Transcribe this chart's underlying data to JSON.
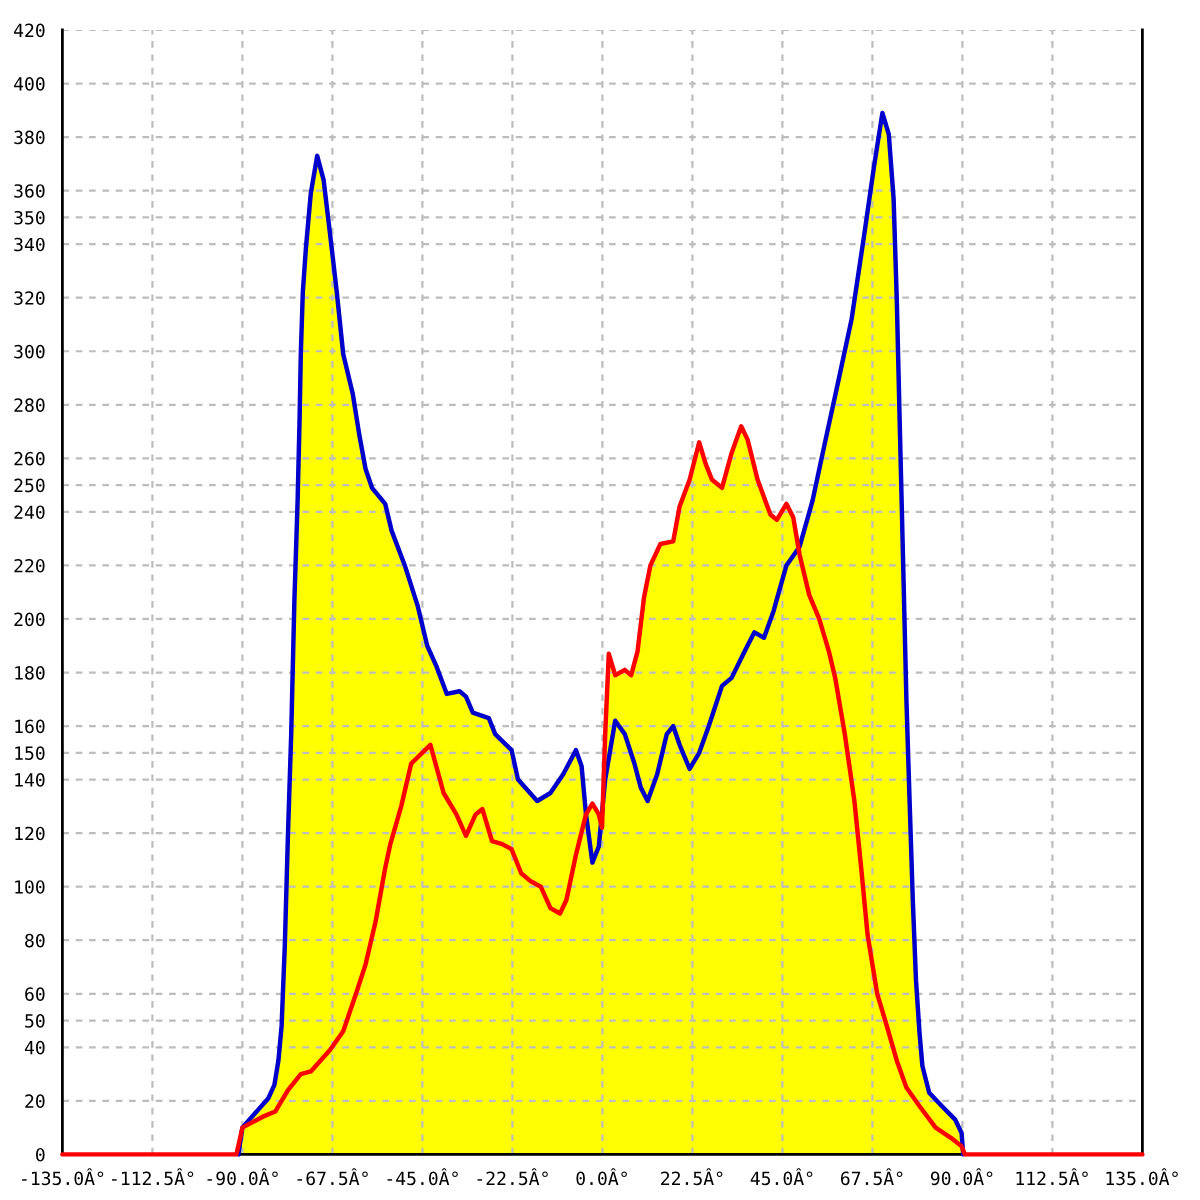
{
  "chart_data": {
    "type": "line",
    "xlim": [
      -135,
      135
    ],
    "ylim": [
      0,
      420
    ],
    "xticks": [
      {
        "value": -135,
        "label": "-135.0Â°"
      },
      {
        "value": -112.5,
        "label": "-112.5Â°"
      },
      {
        "value": -90,
        "label": "-90.0Â°"
      },
      {
        "value": -67.5,
        "label": "-67.5Â°"
      },
      {
        "value": -45,
        "label": "-45.0Â°"
      },
      {
        "value": -22.5,
        "label": "-22.5Â°"
      },
      {
        "value": 0,
        "label": "0.0Â°"
      },
      {
        "value": 22.5,
        "label": "22.5Â°"
      },
      {
        "value": 45,
        "label": "45.0Â°"
      },
      {
        "value": 67.5,
        "label": "67.5Â°"
      },
      {
        "value": 90,
        "label": "90.0Â°"
      },
      {
        "value": 112.5,
        "label": "112.5Â°"
      },
      {
        "value": 135,
        "label": "135.0Â°"
      }
    ],
    "yticks": [
      0,
      20,
      40,
      50,
      60,
      80,
      100,
      120,
      140,
      150,
      160,
      180,
      200,
      220,
      240,
      250,
      260,
      280,
      300,
      320,
      340,
      350,
      360,
      380,
      400,
      420
    ],
    "grid": true,
    "series": [
      {
        "type": "area",
        "color": "#ffff00",
        "x": [
          -91,
          -90,
          -83.5,
          -82,
          -81,
          -80.2,
          -79.4,
          -78.6,
          -77.8,
          -77,
          -76.2,
          -75.7,
          -75.4,
          -74.9,
          -74.1,
          -72.9,
          -71.3,
          -69.7,
          -68.1,
          -66.4,
          -64.8,
          -62.4,
          -60.8,
          -59.2,
          -57.6,
          -54.3,
          -52.7,
          -49.4,
          -46.2,
          -43.8,
          -41.4,
          -38.9,
          -35.7,
          -34.1,
          -32.4,
          -28.4,
          -26.8,
          -22.7,
          -21.1,
          -18.7,
          -16.3,
          -13,
          -9.8,
          -6.6,
          -5.2,
          -4.1,
          -2.5,
          -0.9,
          0.7,
          3.2,
          5.6,
          8,
          9.6,
          11.3,
          13.7,
          16.1,
          17.7,
          19.3,
          21.8,
          24.2,
          26.6,
          29.9,
          32.3,
          35.6,
          38,
          40.4,
          42.8,
          46,
          49.3,
          52.5,
          55.8,
          59,
          62.3,
          65.5,
          67.9,
          70,
          71.6,
          72.8,
          73.6,
          74.4,
          75.2,
          76,
          76.8,
          77.6,
          78.4,
          79.3,
          80,
          81.7,
          84.9,
          88.2,
          89.8,
          90.2
        ],
        "values": [
          0,
          10,
          21,
          26,
          35,
          48,
          78,
          120,
          157,
          207,
          244,
          275,
          299,
          322,
          339,
          359,
          373,
          364,
          344,
          322,
          299,
          284,
          269,
          256,
          249,
          243,
          233,
          220,
          205,
          190,
          182,
          172,
          173,
          171,
          165,
          163,
          157,
          151,
          140,
          136,
          132,
          135,
          142,
          151,
          145,
          127,
          null,
          null,
          null,
          null,
          null,
          null,
          null,
          null,
          null,
          null,
          null,
          null,
          null,
          null,
          null,
          null,
          null,
          null,
          null,
          null,
          null,
          null,
          227,
          244,
          267,
          289,
          312,
          344,
          369,
          389,
          381,
          357,
          319,
          269,
          220,
          170,
          132,
          95,
          65,
          45,
          33,
          23,
          18,
          13,
          8,
          0
        ]
      },
      {
        "type": "area",
        "color": "#fffe00",
        "x": [
          -91.5,
          -90,
          -85,
          -81.8,
          -78.6,
          -75.4,
          -72.9,
          -70.5,
          -68.1,
          -64.8,
          -61.6,
          -59.2,
          -56.7,
          -54.3,
          -53,
          -50.3,
          -47.8,
          -43,
          -39.7,
          -36.5,
          -34.1,
          -31.7,
          -30,
          -27.6,
          -25.2,
          -22.7,
          -20.3,
          -17.9,
          -15.4,
          -13,
          -10.6,
          -9,
          -6.6,
          -4.1,
          -2.5,
          -0.9,
          -0.1,
          0.7,
          1.6,
          3.2,
          5.6,
          7.2,
          8.8,
          10.4,
          12,
          14.5,
          17.7,
          19.3,
          21.8,
          24.2,
          25.8,
          27.4,
          29.9,
          32.3,
          34.7,
          36.3,
          38.8,
          42,
          43.6,
          46,
          47.7,
          49.3,
          51.7,
          54.2,
          56.6,
          58.2,
          60.6,
          63,
          64.7,
          66.3,
          68.7,
          71.1,
          73.6,
          76,
          79.3,
          83.3,
          87.3,
          89.8,
          90.6
        ],
        "values": [
          0,
          10,
          14,
          16,
          24,
          30,
          31,
          35,
          39,
          46,
          60,
          71,
          87,
          107,
          116,
          130,
          146,
          153,
          135,
          127,
          119,
          127,
          129,
          117,
          116,
          114,
          105,
          102,
          100,
          92,
          90,
          95,
          112,
          127,
          131,
          127,
          122,
          157,
          187,
          179,
          181,
          179,
          188,
          208,
          220,
          228,
          229,
          242,
          252,
          266,
          258,
          252,
          249,
          262,
          272,
          267,
          252,
          239,
          237,
          243,
          238,
          224,
          209,
          200,
          188,
          178,
          157,
          132,
          107,
          82,
          60,
          48,
          35,
          25,
          18,
          10,
          6,
          3,
          0
        ]
      },
      {
        "color": "#0000cc",
        "x": [
          -91,
          -90,
          -83.5,
          -82,
          -81,
          -80.2,
          -79.4,
          -78.6,
          -77.8,
          -77,
          -76.2,
          -75.7,
          -75.4,
          -74.9,
          -74.1,
          -72.9,
          -71.3,
          -69.7,
          -68.1,
          -66.4,
          -64.8,
          -62.4,
          -60.8,
          -59.2,
          -57.6,
          -54.3,
          -52.7,
          -49.4,
          -46.2,
          -43.8,
          -41.4,
          -38.9,
          -35.7,
          -34.1,
          -32.4,
          -28.4,
          -26.8,
          -22.7,
          -21.1,
          -18.7,
          -16.3,
          -13,
          -9.8,
          -6.6,
          -5.2,
          -4.1,
          -2.5,
          -0.9,
          0.7,
          3.2,
          5.6,
          8,
          9.6,
          11.3,
          13.7,
          16.1,
          17.7,
          19.3,
          21.8,
          24.2,
          26.6,
          29.9,
          32.3,
          35.6,
          38,
          40.4,
          42.8,
          46,
          49.3,
          52.5,
          55.8,
          59,
          62.3,
          65.5,
          67.9,
          70,
          71.6,
          72.8,
          73.6,
          74.4,
          75.2,
          76,
          76.8,
          77.6,
          78.4,
          79.3,
          80,
          81.7,
          84.9,
          88.2,
          89.8,
          90.2
        ],
        "values": [
          0,
          10,
          21,
          26,
          35,
          48,
          78,
          120,
          157,
          207,
          244,
          275,
          299,
          322,
          339,
          359,
          373,
          364,
          344,
          322,
          299,
          284,
          269,
          256,
          249,
          243,
          233,
          220,
          205,
          190,
          182,
          172,
          173,
          171,
          165,
          163,
          157,
          151,
          140,
          136,
          132,
          135,
          142,
          151,
          145,
          127,
          109,
          115,
          140,
          162,
          157,
          146,
          137,
          132,
          142,
          157,
          160,
          153,
          144,
          150,
          160,
          175,
          178,
          188,
          195,
          193,
          203,
          220,
          227,
          244,
          267,
          289,
          312,
          344,
          369,
          389,
          381,
          357,
          319,
          269,
          220,
          170,
          132,
          95,
          65,
          45,
          33,
          23,
          18,
          13,
          8,
          0
        ]
      },
      {
        "color": "#ff0000",
        "x": [
          -135,
          -91.5,
          -90,
          -85,
          -81.8,
          -78.6,
          -75.4,
          -72.9,
          -70.5,
          -68.1,
          -64.8,
          -61.6,
          -59.2,
          -56.7,
          -54.3,
          -53,
          -50.3,
          -47.8,
          -43,
          -39.7,
          -36.5,
          -34.1,
          -31.7,
          -30,
          -27.6,
          -25.2,
          -22.7,
          -20.3,
          -17.9,
          -15.4,
          -13,
          -10.6,
          -9,
          -6.6,
          -4.1,
          -2.5,
          -0.9,
          -0.1,
          0.7,
          1.6,
          3.2,
          5.6,
          7.2,
          8.8,
          10.4,
          12,
          14.5,
          17.7,
          19.3,
          21.8,
          24.2,
          25.8,
          27.4,
          29.9,
          32.3,
          34.7,
          36.3,
          38.8,
          42,
          43.6,
          46,
          47.7,
          49.3,
          51.7,
          54.2,
          56.6,
          58.2,
          60.6,
          63,
          64.7,
          66.3,
          68.7,
          71.1,
          73.6,
          76,
          79.3,
          83.3,
          87.3,
          89.8,
          90.6,
          135
        ],
        "values": [
          0,
          0,
          10,
          14,
          16,
          24,
          30,
          31,
          35,
          39,
          46,
          60,
          71,
          87,
          107,
          116,
          130,
          146,
          153,
          135,
          127,
          119,
          127,
          129,
          117,
          116,
          114,
          105,
          102,
          100,
          92,
          90,
          95,
          112,
          127,
          131,
          127,
          122,
          157,
          187,
          179,
          181,
          179,
          188,
          208,
          220,
          228,
          229,
          242,
          252,
          266,
          258,
          252,
          249,
          262,
          272,
          267,
          252,
          239,
          237,
          243,
          238,
          224,
          209,
          200,
          188,
          178,
          157,
          132,
          107,
          82,
          60,
          48,
          35,
          25,
          18,
          10,
          6,
          3,
          0,
          0
        ]
      }
    ]
  }
}
